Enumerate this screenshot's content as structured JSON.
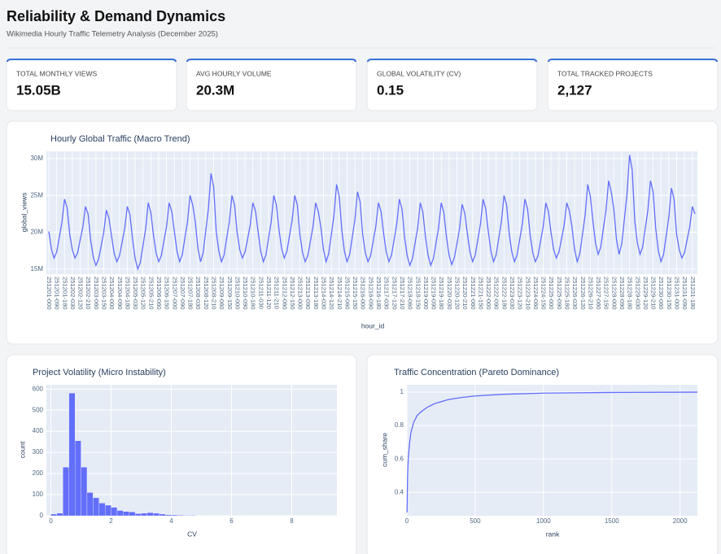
{
  "header": {
    "title": "Reliability & Demand Dynamics",
    "subtitle": "Wikimedia Hourly Traffic Telemetry Analysis (December 2025)"
  },
  "kpis": [
    {
      "label": "TOTAL MONTHLY VIEWS",
      "value": "15.05B"
    },
    {
      "label": "AVG HOURLY VOLUME",
      "value": "20.3M"
    },
    {
      "label": "GLOBAL VOLATILITY (CV)",
      "value": "0.15"
    },
    {
      "label": "TOTAL TRACKED PROJECTS",
      "value": "2,127"
    }
  ],
  "chart_data": [
    {
      "type": "line",
      "title": "Hourly Global Traffic (Macro Trend)",
      "xlabel": "hour_id",
      "ylabel": "global_views",
      "color": "#636efa",
      "grid": true,
      "ylim": [
        14.3,
        31
      ],
      "yticks": [
        {
          "value": 15,
          "label": "15M"
        },
        {
          "value": 20,
          "label": "20M"
        },
        {
          "value": 25,
          "label": "25M"
        },
        {
          "value": 30,
          "label": "30M"
        }
      ],
      "categories": [
        "251201-000",
        null,
        null,
        "251201-090",
        null,
        null,
        "251201-180",
        null,
        null,
        "251202-030",
        null,
        null,
        "251202-120",
        null,
        null,
        "251202-210",
        null,
        null,
        "251203-060",
        null,
        null,
        "251203-150",
        null,
        null,
        "251204-000",
        null,
        null,
        "251204-090",
        null,
        null,
        "251204-180",
        null,
        null,
        "251205-030",
        null,
        null,
        "251205-120",
        null,
        null,
        "251205-210",
        null,
        null,
        "251206-060",
        null,
        null,
        "251206-150",
        null,
        null,
        "251207-000",
        null,
        null,
        "251207-090",
        null,
        null,
        "251207-180",
        null,
        null,
        "251208-030",
        null,
        null,
        "251208-120",
        null,
        null,
        "251208-210",
        null,
        null,
        "251209-060",
        null,
        null,
        "251209-150",
        null,
        null,
        "251210-000",
        null,
        null,
        "251210-090",
        null,
        null,
        "251210-180",
        null,
        null,
        "251211-030",
        null,
        null,
        "251211-120",
        null,
        null,
        "251211-210",
        null,
        null,
        "251212-060",
        null,
        null,
        "251212-150",
        null,
        null,
        "251213-000",
        null,
        null,
        "251213-090",
        null,
        null,
        "251213-180",
        null,
        null,
        "251214-030",
        null,
        null,
        "251214-120",
        null,
        null,
        "251214-210",
        null,
        null,
        "251215-060",
        null,
        null,
        "251215-150",
        null,
        null,
        "251216-000",
        null,
        null,
        "251216-090",
        null,
        null,
        "251216-180",
        null,
        null,
        "251217-030",
        null,
        null,
        "251217-120",
        null,
        null,
        "251217-210",
        null,
        null,
        "251218-060",
        null,
        null,
        "251218-150",
        null,
        null,
        "251219-000",
        null,
        null,
        "251219-090",
        null,
        null,
        "251219-180",
        null,
        null,
        "251220-030",
        null,
        null,
        "251220-120",
        null,
        null,
        "251220-210",
        null,
        null,
        "251221-060",
        null,
        null,
        "251221-150",
        null,
        null,
        "251222-000",
        null,
        null,
        "251222-090",
        null,
        null,
        "251222-180",
        null,
        null,
        "251223-030",
        null,
        null,
        "251223-120",
        null,
        null,
        "251223-210",
        null,
        null,
        "251224-060",
        null,
        null,
        "251224-150",
        null,
        null,
        "251225-000",
        null,
        null,
        "251225-090",
        null,
        null,
        "251225-180",
        null,
        null,
        "251226-030",
        null,
        null,
        "251226-120",
        null,
        null,
        "251226-210",
        null,
        null,
        "251227-060",
        null,
        null,
        "251227-150",
        null,
        null,
        "251228-000",
        null,
        null,
        "251228-090",
        null,
        null,
        "251228-180",
        null,
        null,
        "251229-030",
        null,
        null,
        "251229-120",
        null,
        null,
        "251229-210",
        null,
        null,
        "251230-060",
        null,
        null,
        "251230-150",
        null,
        null,
        "251231-000",
        null,
        null,
        "251231-090",
        null,
        null,
        "251231-180",
        null
      ],
      "values": [
        20.1,
        17.7,
        16.5,
        17.3,
        19.3,
        21.3,
        24.5,
        23.3,
        19.7,
        17.6,
        16.5,
        17.2,
        19.0,
        20.7,
        23.5,
        22.5,
        18.9,
        16.6,
        15.5,
        16.3,
        18.1,
        20.0,
        23.0,
        21.9,
        19.4,
        17.1,
        16.0,
        16.8,
        18.6,
        20.5,
        23.5,
        22.4,
        19.1,
        16.4,
        15.0,
        15.9,
        18.2,
        20.4,
        24.0,
        22.7,
        19.6,
        17.2,
        16.0,
        16.8,
        18.8,
        20.8,
        24.0,
        22.8,
        20.1,
        17.4,
        16.0,
        16.9,
        19.2,
        21.4,
        25.0,
        23.7,
        21.4,
        17.8,
        16.0,
        17.2,
        20.2,
        23.2,
        28.0,
        26.2,
        20.1,
        17.4,
        16.0,
        16.9,
        19.2,
        21.4,
        25.0,
        23.7,
        19.9,
        17.6,
        16.5,
        17.3,
        19.1,
        21.0,
        24.0,
        22.9,
        20.1,
        17.4,
        16.0,
        16.9,
        19.2,
        21.4,
        25.0,
        23.7,
        20.3,
        17.8,
        16.5,
        17.4,
        19.5,
        21.6,
        25.0,
        23.7,
        19.6,
        17.2,
        16.0,
        16.8,
        18.8,
        20.8,
        24.0,
        22.8,
        20.7,
        17.6,
        16.0,
        17.1,
        19.7,
        22.3,
        26.5,
        24.9,
        20.3,
        17.4,
        16.0,
        17.0,
        19.3,
        21.7,
        25.5,
        24.1,
        19.6,
        17.2,
        16.0,
        16.8,
        18.8,
        20.8,
        24.0,
        22.8,
        19.8,
        17.3,
        16.0,
        16.9,
        19.0,
        21.1,
        24.5,
        23.2,
        19.3,
        16.8,
        15.5,
        16.4,
        18.5,
        20.6,
        24.0,
        22.7,
        19.3,
        16.8,
        15.5,
        16.4,
        18.5,
        20.6,
        24.0,
        22.7,
        19.4,
        16.9,
        15.6,
        16.5,
        18.4,
        20.5,
        23.8,
        22.6,
        19.8,
        17.3,
        16.0,
        16.9,
        19.0,
        21.1,
        24.5,
        23.2,
        20.1,
        17.4,
        16.0,
        16.9,
        19.2,
        21.4,
        25.0,
        23.7,
        19.8,
        17.3,
        16.0,
        16.9,
        19.0,
        21.1,
        24.5,
        23.2,
        19.6,
        17.2,
        16.0,
        16.8,
        18.8,
        20.8,
        24.0,
        22.8,
        19.9,
        17.6,
        16.5,
        17.3,
        19.1,
        21.0,
        24.0,
        22.9,
        20.7,
        17.6,
        16.0,
        17.1,
        19.7,
        22.3,
        26.5,
        24.9,
        21.5,
        18.5,
        17.0,
        18.0,
        20.5,
        23.0,
        27.0,
        25.5,
        23.1,
        19.0,
        17.0,
        18.4,
        21.7,
        25.1,
        30.5,
        28.5,
        21.5,
        18.5,
        17.0,
        18.0,
        20.5,
        23.0,
        27.0,
        25.5,
        20.5,
        17.5,
        16.0,
        17.0,
        19.5,
        22.0,
        26.0,
        24.5,
        19.7,
        17.6,
        16.5,
        17.2,
        19.0,
        20.7,
        23.5,
        22.5
      ]
    },
    {
      "type": "histogram",
      "title": "Project Volatility (Micro Instability)",
      "xlabel": "CV",
      "ylabel": "count",
      "color": "#636efa",
      "grid": true,
      "xlim": [
        -0.15,
        9.5
      ],
      "xticks": [
        0,
        2,
        4,
        6,
        8
      ],
      "ylim": [
        0,
        620
      ],
      "yticks": [
        0,
        100,
        200,
        300,
        400,
        500,
        600
      ],
      "bins": [
        0,
        0.2,
        0.4,
        0.6,
        0.8,
        1.0,
        1.2,
        1.4,
        1.6,
        1.8,
        2.0,
        2.2,
        2.4,
        2.6,
        2.8,
        3.0,
        3.2,
        3.4,
        3.6,
        3.8,
        4.0,
        4.2,
        4.4,
        4.6,
        4.8,
        5.0,
        5.2,
        5.4,
        5.6,
        5.8,
        6.0,
        6.2,
        6.4,
        6.6,
        6.8,
        7.0,
        7.2,
        7.4,
        7.6,
        7.8,
        8.0,
        8.2,
        8.4,
        8.6,
        8.8,
        9.0,
        9.2,
        9.4
      ],
      "values": [
        8,
        12,
        230,
        581,
        355,
        230,
        110,
        85,
        60,
        50,
        40,
        25,
        20,
        18,
        10,
        12,
        15,
        12,
        8,
        5,
        4,
        3,
        2,
        2,
        1,
        1,
        1,
        0,
        1,
        0,
        0,
        1,
        0,
        0,
        0,
        0,
        0,
        0,
        0,
        0,
        0,
        0,
        0,
        0,
        0,
        1,
        1
      ]
    },
    {
      "type": "line",
      "title": "Traffic Concentration (Pareto Dominance)",
      "xlabel": "rank",
      "ylabel": "cum_share",
      "color": "#636efa",
      "grid": true,
      "xlim": [
        0,
        2127
      ],
      "xticks": [
        0,
        500,
        1000,
        1500,
        2000
      ],
      "ylim": [
        0.26,
        1.044
      ],
      "yticks": [
        0.4,
        0.6,
        0.8,
        1
      ],
      "x": [
        1,
        5,
        10,
        20,
        30,
        50,
        75,
        100,
        150,
        200,
        300,
        400,
        500,
        700,
        1000,
        1500,
        2127
      ],
      "values": [
        0.28,
        0.5,
        0.6,
        0.7,
        0.76,
        0.82,
        0.86,
        0.88,
        0.91,
        0.93,
        0.955,
        0.968,
        0.977,
        0.987,
        0.994,
        0.998,
        1
      ]
    }
  ]
}
